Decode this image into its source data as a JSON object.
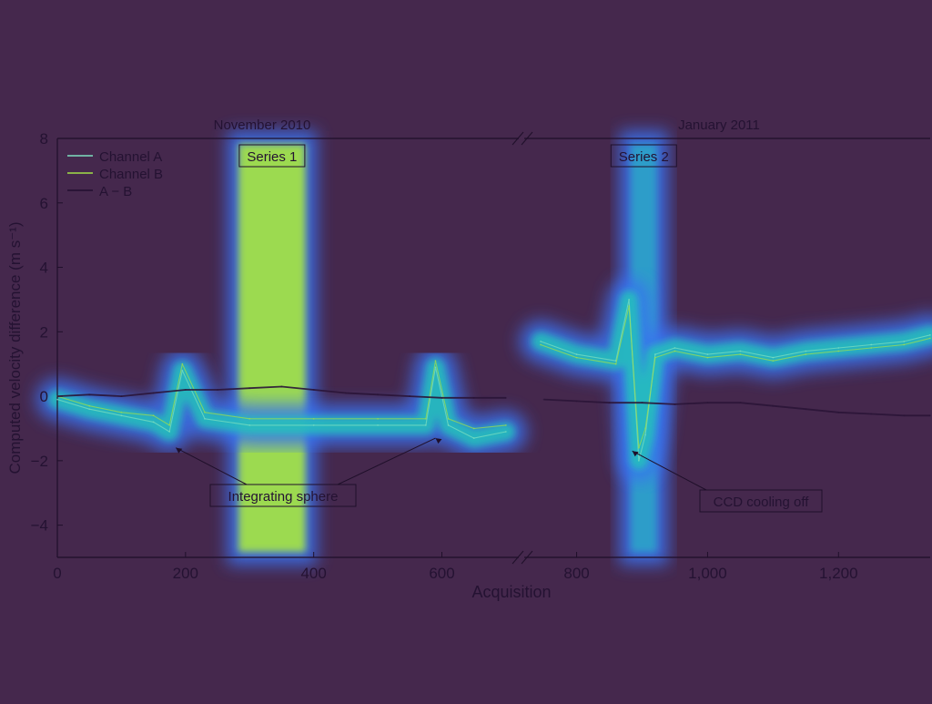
{
  "colors": {
    "background": "#45284d",
    "axis": "#1f0f2a",
    "text": "#241232",
    "series_overlay": "#7fe0c0",
    "heat_glow": "#3a72f0",
    "heat_mid": "#24c8b8",
    "heat_core": "#a2e048",
    "diff_line": "#2a1437"
  },
  "chart_data": {
    "type": "line",
    "xlabel": "Acquisition",
    "ylabel": "Computed velocity difference (m s⁻¹)",
    "ylim": [
      -5,
      8
    ],
    "y_ticks": [
      -4,
      -2,
      0,
      2,
      4,
      6,
      8
    ],
    "grid": false,
    "legend_position": "top-left",
    "broken_x_axis": true,
    "panels": [
      {
        "title": "November 2010",
        "xlim": [
          0,
          720
        ],
        "x_ticks": [
          0,
          200,
          400,
          600
        ],
        "x_tick_labels": [
          "0",
          "200",
          "400",
          "600"
        ]
      },
      {
        "title": "January 2011",
        "xlim": [
          720,
          1340
        ],
        "x_ticks": [
          800,
          1000,
          1200
        ],
        "x_tick_labels": [
          "800",
          "1,000",
          "1,200"
        ]
      }
    ],
    "series": [
      {
        "name": "Channel A",
        "style": "thin line",
        "x": [
          0,
          50,
          100,
          150,
          175,
          195,
          230,
          300,
          400,
          500,
          575,
          590,
          610,
          650,
          700,
          745,
          800,
          860,
          880,
          895,
          905,
          920,
          950,
          1000,
          1050,
          1100,
          1150,
          1200,
          1250,
          1300,
          1340
        ],
        "y": [
          -0.1,
          -0.4,
          -0.6,
          -0.8,
          -1.1,
          0.8,
          -0.7,
          -0.9,
          -0.9,
          -0.9,
          -0.9,
          0.9,
          -0.9,
          -1.3,
          -1.1,
          1.7,
          1.3,
          1.1,
          3.0,
          -2.0,
          -1.2,
          1.3,
          1.5,
          1.3,
          1.4,
          1.2,
          1.4,
          1.5,
          1.6,
          1.7,
          1.9
        ]
      },
      {
        "name": "Channel B",
        "style": "thin line",
        "x": [
          0,
          50,
          100,
          150,
          175,
          195,
          230,
          300,
          400,
          500,
          575,
          590,
          610,
          650,
          700,
          745,
          800,
          860,
          880,
          895,
          905,
          920,
          950,
          1000,
          1050,
          1100,
          1150,
          1200,
          1250,
          1300,
          1340
        ],
        "y": [
          0.0,
          -0.3,
          -0.5,
          -0.6,
          -0.9,
          1.0,
          -0.5,
          -0.7,
          -0.7,
          -0.7,
          -0.7,
          1.1,
          -0.7,
          -1.0,
          -0.9,
          1.6,
          1.2,
          1.0,
          2.8,
          -1.6,
          -1.0,
          1.2,
          1.4,
          1.2,
          1.3,
          1.1,
          1.3,
          1.4,
          1.5,
          1.6,
          1.8
        ]
      },
      {
        "name": "A − B",
        "style": "thick line",
        "x": [
          0,
          50,
          100,
          150,
          200,
          250,
          300,
          350,
          400,
          450,
          500,
          550,
          600,
          650,
          700,
          750,
          800,
          850,
          900,
          950,
          1000,
          1050,
          1100,
          1150,
          1200,
          1250,
          1300,
          1340
        ],
        "y": [
          0.0,
          0.05,
          0.0,
          0.1,
          0.2,
          0.2,
          0.25,
          0.3,
          0.2,
          0.1,
          0.05,
          0.0,
          -0.05,
          -0.05,
          -0.05,
          -0.1,
          -0.15,
          -0.2,
          -0.2,
          -0.25,
          -0.2,
          -0.2,
          -0.3,
          -0.4,
          -0.5,
          -0.55,
          -0.6,
          -0.6
        ]
      }
    ],
    "shaded_regions": [
      {
        "label": "Series 1",
        "x_range": [
          280,
          390
        ]
      },
      {
        "label": "Series 2",
        "x_range": [
          880,
          925
        ]
      }
    ],
    "annotations": [
      {
        "text": "Integrating sphere",
        "targets": [
          [
            185,
            -1.6
          ],
          [
            590,
            -1.3
          ]
        ]
      },
      {
        "text": "CCD cooling off",
        "targets": [
          [
            885,
            -1.7
          ]
        ]
      }
    ]
  }
}
